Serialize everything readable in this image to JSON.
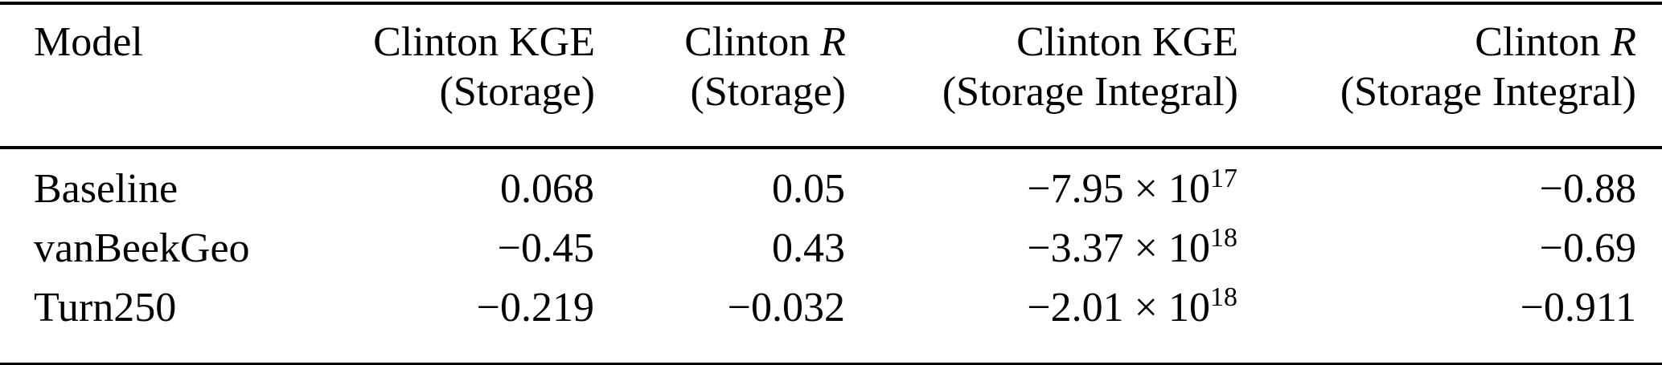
{
  "header": {
    "model": "Model",
    "kge_storage": {
      "line1": "Clinton KGE",
      "line2": "(Storage)"
    },
    "r_storage": {
      "line1_prefix": "Clinton",
      "line1_metric": "R",
      "line2": "(Storage)"
    },
    "kge_integral": {
      "line1": "Clinton KGE",
      "line2": "(Storage Integral)"
    },
    "r_integral": {
      "line1_prefix": "Clinton",
      "line1_metric": "R",
      "line2": "(Storage Integral)"
    }
  },
  "rows": [
    {
      "model": "Baseline",
      "kge_storage": "0.068",
      "r_storage": "0.05",
      "kge_integral": {
        "base": "−7.95 × 10",
        "exp": "17"
      },
      "r_integral": "−0.88"
    },
    {
      "model": "vanBeekGeo",
      "kge_storage": "−0.45",
      "r_storage": "0.43",
      "kge_integral": {
        "base": "−3.37 × 10",
        "exp": "18"
      },
      "r_integral": "−0.69"
    },
    {
      "model": "Turn250",
      "kge_storage": "−0.219",
      "r_storage": "−0.032",
      "kge_integral": {
        "base": "−2.01 × 10",
        "exp": "18"
      },
      "r_integral": "−0.911"
    }
  ],
  "colors": {
    "text": "#000000",
    "background": "#ffffff",
    "rule": "#000000"
  },
  "chart_data": {
    "type": "table",
    "columns": [
      "Model",
      "Clinton KGE (Storage)",
      "Clinton R (Storage)",
      "Clinton KGE (Storage Integral)",
      "Clinton R (Storage Integral)"
    ],
    "rows": [
      [
        "Baseline",
        0.068,
        0.05,
        -7.95e+17,
        -0.88
      ],
      [
        "vanBeekGeo",
        -0.45,
        0.43,
        -3.37e+18,
        -0.69
      ],
      [
        "Turn250",
        -0.219,
        -0.032,
        -2.01e+18,
        -0.911
      ]
    ]
  }
}
